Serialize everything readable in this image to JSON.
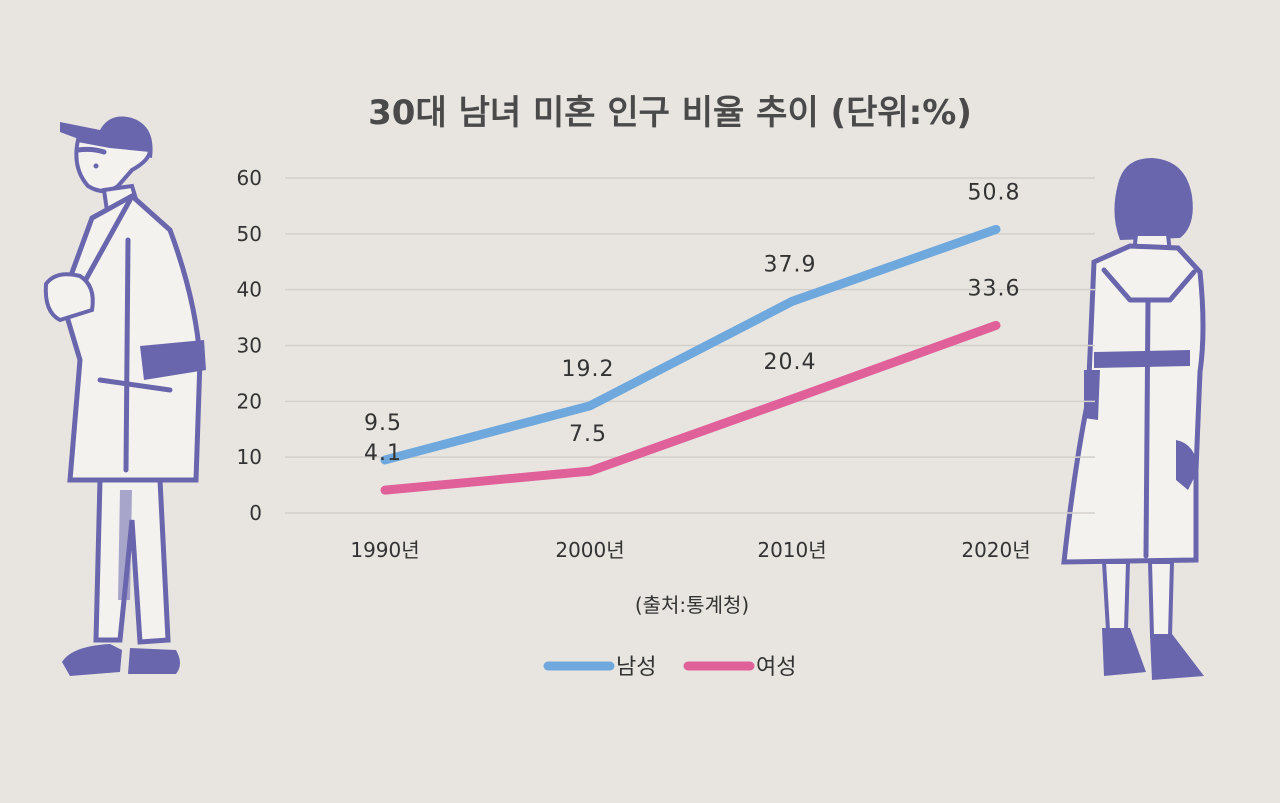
{
  "chart_data": {
    "type": "line",
    "title": "30대 남녀 미혼 인구 비율 추이 (단위:%)",
    "categories": [
      "1990년",
      "2000년",
      "2010년",
      "2020년"
    ],
    "series": [
      {
        "name": "남성",
        "values": [
          9.5,
          19.2,
          37.9,
          50.8
        ],
        "color": "#6fa8dc"
      },
      {
        "name": "여성",
        "values": [
          4.1,
          7.5,
          20.4,
          33.6
        ],
        "color": "#e0609a"
      }
    ],
    "ylim": [
      0,
      60
    ],
    "yticks": [
      0,
      10,
      20,
      30,
      40,
      50,
      60
    ],
    "grid": true,
    "legend_position": "bottom",
    "source": "(출처:통계청)"
  },
  "illustrations": {
    "left": "man-in-coat-with-cap",
    "right": "woman-in-trench-coat",
    "ink_color": "#6a66ad"
  }
}
